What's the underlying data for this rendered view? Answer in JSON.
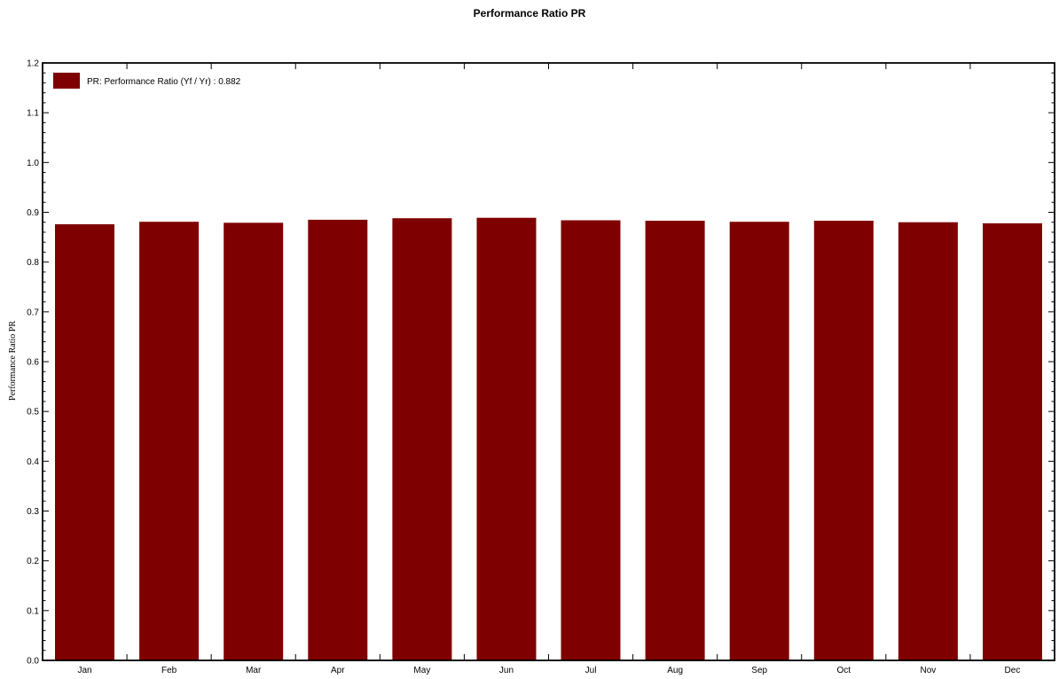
{
  "chart_data": {
    "type": "bar",
    "title": "Performance Ratio PR",
    "ylabel": "Performance Ratio PR",
    "xlabel": "",
    "categories": [
      "Jan",
      "Feb",
      "Mar",
      "Apr",
      "May",
      "Jun",
      "Jul",
      "Aug",
      "Sep",
      "Oct",
      "Nov",
      "Dec"
    ],
    "series": [
      {
        "name": "PR: Performance Ratio (Yf / Yr) :  0.882",
        "values": [
          0.876,
          0.881,
          0.879,
          0.885,
          0.888,
          0.889,
          0.884,
          0.883,
          0.881,
          0.883,
          0.88,
          0.878
        ]
      }
    ],
    "ylim": [
      0.0,
      1.2
    ],
    "yticks": [
      "0.0",
      "0.1",
      "0.2",
      "0.3",
      "0.4",
      "0.5",
      "0.6",
      "0.7",
      "0.8",
      "0.9",
      "1.0",
      "1.1",
      "1.2"
    ],
    "grid": false,
    "legend_position": "top-left",
    "bar_color": "#7f0000"
  }
}
